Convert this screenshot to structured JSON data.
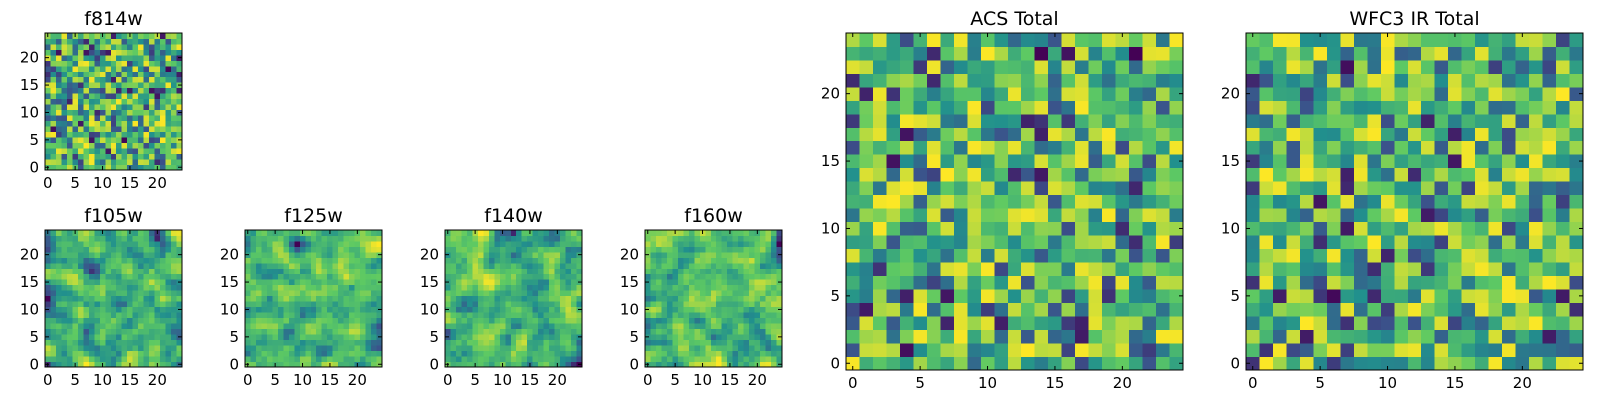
{
  "colormap": [
    "#440154",
    "#3b528b",
    "#21908d",
    "#5dc963",
    "#fde725"
  ],
  "chart_data": [
    {
      "type": "heatmap",
      "title": "f814w",
      "grid_size": 25,
      "xticks": [
        0,
        5,
        10,
        15,
        20
      ],
      "yticks": [
        0,
        5,
        10,
        15,
        20
      ],
      "xlim": [
        0,
        25
      ],
      "ylim": [
        0,
        25
      ],
      "seed": 11,
      "smooth": 0,
      "values_note": "25x25 pixel cutout (values approximated)"
    },
    {
      "type": "heatmap",
      "title": "f105w",
      "grid_size": 25,
      "xticks": [
        0,
        5,
        10,
        15,
        20
      ],
      "yticks": [
        0,
        5,
        10,
        15,
        20
      ],
      "xlim": [
        0,
        25
      ],
      "ylim": [
        0,
        25
      ],
      "seed": 23,
      "smooth": 1,
      "values_note": "25x25 pixel cutout (values approximated)"
    },
    {
      "type": "heatmap",
      "title": "f125w",
      "grid_size": 25,
      "xticks": [
        0,
        5,
        10,
        15,
        20
      ],
      "yticks": [
        0,
        5,
        10,
        15,
        20
      ],
      "xlim": [
        0,
        25
      ],
      "ylim": [
        0,
        25
      ],
      "seed": 37,
      "smooth": 1,
      "values_note": "25x25 pixel cutout (values approximated)"
    },
    {
      "type": "heatmap",
      "title": "f140w",
      "grid_size": 25,
      "xticks": [
        0,
        5,
        10,
        15,
        20
      ],
      "yticks": [
        0,
        5,
        10,
        15,
        20
      ],
      "xlim": [
        0,
        25
      ],
      "ylim": [
        0,
        25
      ],
      "seed": 41,
      "smooth": 1,
      "values_note": "25x25 pixel cutout (values approximated)"
    },
    {
      "type": "heatmap",
      "title": "f160w",
      "grid_size": 25,
      "xticks": [
        0,
        5,
        10,
        15,
        20
      ],
      "yticks": [
        0,
        5,
        10,
        15,
        20
      ],
      "xlim": [
        0,
        25
      ],
      "ylim": [
        0,
        25
      ],
      "seed": 53,
      "smooth": 1,
      "values_note": "25x25 pixel cutout (values approximated)"
    },
    {
      "type": "heatmap",
      "title": "ACS Total",
      "grid_size": 25,
      "xticks": [
        0,
        5,
        10,
        15,
        20
      ],
      "yticks": [
        0,
        5,
        10,
        15,
        20
      ],
      "xlim": [
        0,
        25
      ],
      "ylim": [
        0,
        25
      ],
      "seed": 67,
      "smooth": 0,
      "values_note": "25x25 pixel cutout (values approximated)"
    },
    {
      "type": "heatmap",
      "title": "WFC3 IR Total",
      "grid_size": 25,
      "xticks": [
        0,
        5,
        10,
        15,
        20
      ],
      "yticks": [
        0,
        5,
        10,
        15,
        20
      ],
      "xlim": [
        0,
        25
      ],
      "ylim": [
        0,
        25
      ],
      "seed": 79,
      "smooth": 0,
      "values_note": "25x25 pixel cutout (values approximated)"
    }
  ]
}
